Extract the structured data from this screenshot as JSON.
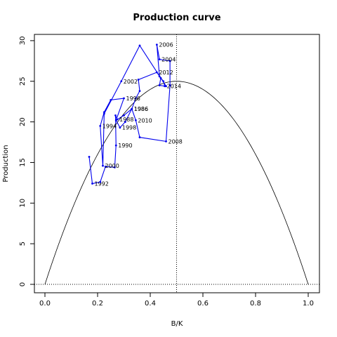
{
  "chart_data": {
    "type": "line",
    "title": "Production curve",
    "xlabel": "B/K",
    "ylabel": "Production",
    "xlim": [
      0,
      1
    ],
    "ylim": [
      0,
      30
    ],
    "xticks": [
      0.0,
      0.2,
      0.4,
      0.6,
      0.8,
      1.0
    ],
    "xtick_labels": [
      "0.0",
      "0.2",
      "0.4",
      "0.6",
      "0.8",
      "1.0"
    ],
    "yticks": [
      0,
      5,
      10,
      15,
      20,
      25,
      30
    ],
    "ytick_labels": [
      "0",
      "5",
      "10",
      "15",
      "20",
      "25",
      "30"
    ],
    "curve": {
      "type": "parabola",
      "peak_x": 0.5,
      "peak_y": 25,
      "roots": [
        0,
        1
      ]
    },
    "reference_lines": {
      "vertical_x": 0.5,
      "horizontal_y": 0
    },
    "series_color": "#0000ee",
    "curve_color": "#000000",
    "points": [
      {
        "x": 0.168,
        "y": 15.7,
        "label": ""
      },
      {
        "x": 0.18,
        "y": 12.4,
        "label": "1992"
      },
      {
        "x": 0.21,
        "y": 12.6,
        "label": ""
      },
      {
        "x": 0.23,
        "y": 14.5,
        "label": ""
      },
      {
        "x": 0.265,
        "y": 14.4,
        "label": ""
      },
      {
        "x": 0.27,
        "y": 17.1,
        "label": "1990"
      },
      {
        "x": 0.268,
        "y": 20.8,
        "label": ""
      },
      {
        "x": 0.275,
        "y": 20.3,
        "label": "1988"
      },
      {
        "x": 0.3,
        "y": 20.8,
        "label": ""
      },
      {
        "x": 0.33,
        "y": 21.6,
        "label": "1986"
      },
      {
        "x": 0.345,
        "y": 20.2,
        "label": "2010"
      },
      {
        "x": 0.36,
        "y": 18.1,
        "label": ""
      },
      {
        "x": 0.46,
        "y": 17.6,
        "label": "2008"
      },
      {
        "x": 0.475,
        "y": 24.5,
        "label": ""
      },
      {
        "x": 0.475,
        "y": 27.5,
        "label": ""
      },
      {
        "x": 0.435,
        "y": 27.7,
        "label": "2004"
      },
      {
        "x": 0.425,
        "y": 29.5,
        "label": "2006"
      },
      {
        "x": 0.435,
        "y": 25.6,
        "label": ""
      },
      {
        "x": 0.45,
        "y": 25.0,
        "label": ""
      },
      {
        "x": 0.455,
        "y": 24.4,
        "label": "2014"
      },
      {
        "x": 0.435,
        "y": 24.5,
        "label": ""
      },
      {
        "x": 0.44,
        "y": 25.4,
        "label": ""
      },
      {
        "x": 0.425,
        "y": 26.1,
        "label": "2012"
      },
      {
        "x": 0.355,
        "y": 25.2,
        "label": ""
      },
      {
        "x": 0.36,
        "y": 23.8,
        "label": ""
      },
      {
        "x": 0.345,
        "y": 22.9,
        "label": ""
      },
      {
        "x": 0.33,
        "y": 21.6,
        "label": "1986"
      },
      {
        "x": 0.305,
        "y": 20.0,
        "label": ""
      },
      {
        "x": 0.285,
        "y": 19.3,
        "label": "1998"
      },
      {
        "x": 0.27,
        "y": 20.2,
        "label": ""
      },
      {
        "x": 0.3,
        "y": 22.9,
        "label": "1996"
      },
      {
        "x": 0.25,
        "y": 22.7,
        "label": ""
      },
      {
        "x": 0.225,
        "y": 21.2,
        "label": ""
      },
      {
        "x": 0.21,
        "y": 19.5,
        "label": "1994"
      },
      {
        "x": 0.22,
        "y": 14.6,
        "label": "2000"
      },
      {
        "x": 0.225,
        "y": 21.0,
        "label": ""
      },
      {
        "x": 0.29,
        "y": 25.0,
        "label": "2002"
      },
      {
        "x": 0.36,
        "y": 29.4,
        "label": ""
      },
      {
        "x": 0.46,
        "y": 24.4,
        "label": ""
      }
    ]
  }
}
